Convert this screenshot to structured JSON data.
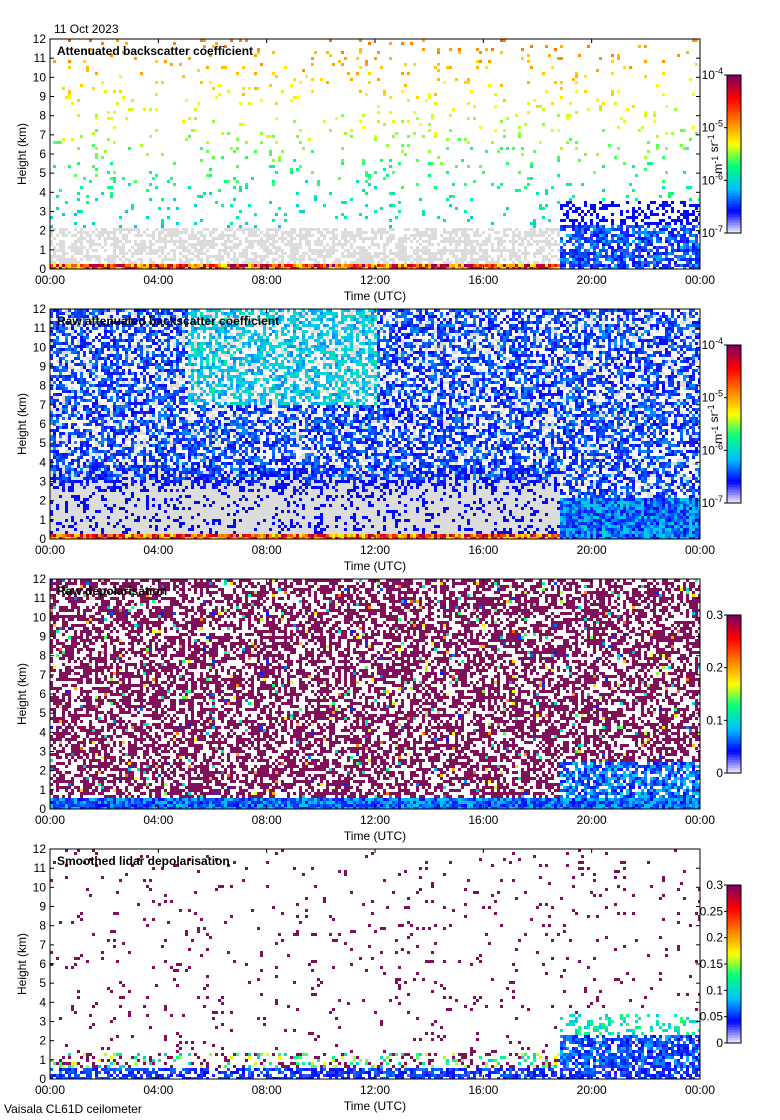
{
  "date_label": "11 Oct 2023",
  "footer_label": "Vaisala CL61D ceilometer",
  "chart_data": [
    {
      "type": "heatmap",
      "title": "Attenuated backscatter coefficient",
      "xlabel": "Time (UTC)",
      "ylabel": "Height (km)",
      "xlim": [
        0,
        24
      ],
      "ylim": [
        0,
        12
      ],
      "x_ticks": [
        "00:00",
        "04:00",
        "08:00",
        "12:00",
        "16:00",
        "20:00",
        "00:00"
      ],
      "y_ticks": [
        "0",
        "1",
        "2",
        "3",
        "4",
        "5",
        "6",
        "7",
        "8",
        "9",
        "10",
        "11",
        "12"
      ],
      "colorbar": {
        "scale": "log",
        "range": [
          1e-07,
          0.0001
        ],
        "unit_label": "m-1 sr-1",
        "ticks": [
          {
            "base": "10",
            "exp": "-4"
          },
          {
            "base": "10",
            "exp": "-5"
          },
          {
            "base": "10",
            "exp": "-6"
          },
          {
            "base": "10",
            "exp": "-7"
          }
        ]
      },
      "palette": "backscatter"
    },
    {
      "type": "heatmap",
      "title": "Raw attenuated backscatter coefficient",
      "xlabel": "Time (UTC)",
      "ylabel": "Height (km)",
      "xlim": [
        0,
        24
      ],
      "ylim": [
        0,
        12
      ],
      "x_ticks": [
        "00:00",
        "04:00",
        "08:00",
        "12:00",
        "16:00",
        "20:00",
        "00:00"
      ],
      "y_ticks": [
        "0",
        "1",
        "2",
        "3",
        "4",
        "5",
        "6",
        "7",
        "8",
        "9",
        "10",
        "11",
        "12"
      ],
      "colorbar": {
        "scale": "log",
        "range": [
          1e-07,
          0.0001
        ],
        "unit_label": "m-1 sr-1",
        "ticks": [
          {
            "base": "10",
            "exp": "-4"
          },
          {
            "base": "10",
            "exp": "-5"
          },
          {
            "base": "10",
            "exp": "-6"
          },
          {
            "base": "10",
            "exp": "-7"
          }
        ]
      },
      "palette": "raw-backscatter"
    },
    {
      "type": "heatmap",
      "title": "Raw depolarisation",
      "xlabel": "Time (UTC)",
      "ylabel": "Height (km)",
      "xlim": [
        0,
        24
      ],
      "ylim": [
        0,
        12
      ],
      "x_ticks": [
        "00:00",
        "04:00",
        "08:00",
        "12:00",
        "16:00",
        "20:00",
        "00:00"
      ],
      "y_ticks": [
        "0",
        "1",
        "2",
        "3",
        "4",
        "5",
        "6",
        "7",
        "8",
        "9",
        "10",
        "11",
        "12"
      ],
      "colorbar": {
        "scale": "linear",
        "range": [
          0,
          0.3
        ],
        "unit_label": "",
        "ticks": [
          {
            "base": "0.3",
            "exp": ""
          },
          {
            "base": "0.2",
            "exp": ""
          },
          {
            "base": "0.1",
            "exp": ""
          },
          {
            "base": "0",
            "exp": ""
          }
        ]
      },
      "palette": "raw-depol"
    },
    {
      "type": "heatmap",
      "title": "Smoothed lidar depolarisation",
      "xlabel": "Time (UTC)",
      "ylabel": "Height (km)",
      "xlim": [
        0,
        24
      ],
      "ylim": [
        0,
        12
      ],
      "x_ticks": [
        "00:00",
        "04:00",
        "08:00",
        "12:00",
        "16:00",
        "20:00",
        "00:00"
      ],
      "y_ticks": [
        "0",
        "1",
        "2",
        "3",
        "4",
        "5",
        "6",
        "7",
        "8",
        "9",
        "10",
        "11",
        "12"
      ],
      "colorbar": {
        "scale": "linear",
        "range": [
          0,
          0.3
        ],
        "unit_label": "",
        "ticks": [
          {
            "base": "0.3",
            "exp": ""
          },
          {
            "base": "0.25",
            "exp": ""
          },
          {
            "base": "0.2",
            "exp": ""
          },
          {
            "base": "0.15",
            "exp": ""
          },
          {
            "base": "0.1",
            "exp": ""
          },
          {
            "base": "0.05",
            "exp": ""
          },
          {
            "base": "0",
            "exp": ""
          }
        ]
      },
      "palette": "smooth-depol"
    }
  ],
  "colors": {
    "colormap": [
      "#ffffff",
      "#0000ff",
      "#00c0ff",
      "#00ff80",
      "#ffff00",
      "#ff8000",
      "#ff0000",
      "#800060"
    ],
    "no_data_grey": "#dcdcdc",
    "depol_purple": "#80105a"
  }
}
